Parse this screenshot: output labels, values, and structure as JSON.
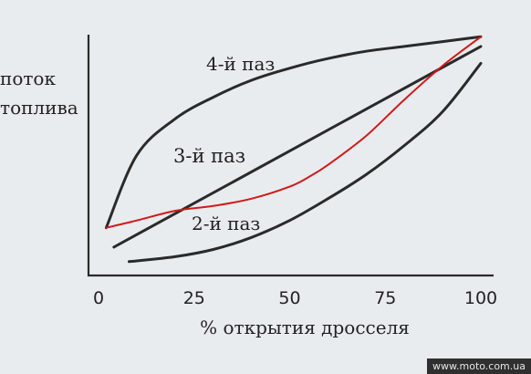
{
  "chart_data": {
    "type": "line",
    "title": "",
    "xlabel": "% открытия дросселя",
    "ylabel_lines": [
      "поток",
      "топлива"
    ],
    "x_ticks": [
      0,
      25,
      50,
      75,
      100
    ],
    "xlim": [
      0,
      100
    ],
    "ylim": [
      0,
      100
    ],
    "grid": false,
    "legend": "none",
    "series": [
      {
        "name": "4-й паз",
        "color": "#2a2a2a",
        "x": [
          2,
          10,
          20,
          30,
          40,
          50,
          60,
          70,
          80,
          90,
          100
        ],
        "y": [
          19,
          49,
          64,
          73,
          80,
          85,
          89,
          92,
          94,
          96,
          98
        ]
      },
      {
        "name": "3-й паз",
        "color": "#2a2a2a",
        "x": [
          4,
          100
        ],
        "y": [
          11,
          94
        ]
      },
      {
        "name": "2-й паз",
        "color": "#2a2a2a",
        "x": [
          8,
          20,
          30,
          40,
          50,
          60,
          70,
          80,
          90,
          100
        ],
        "y": [
          5,
          7,
          10,
          15,
          22,
          31,
          41,
          53,
          67,
          87
        ]
      },
      {
        "name": "",
        "color": "#d01a1a",
        "x": [
          2,
          10,
          20,
          30,
          40,
          50,
          55,
          60,
          70,
          80,
          90,
          100
        ],
        "y": [
          19,
          22,
          26,
          28,
          31,
          36,
          40,
          45,
          57,
          72,
          86,
          98
        ]
      }
    ]
  },
  "watermark": "www.moto.com.ua"
}
